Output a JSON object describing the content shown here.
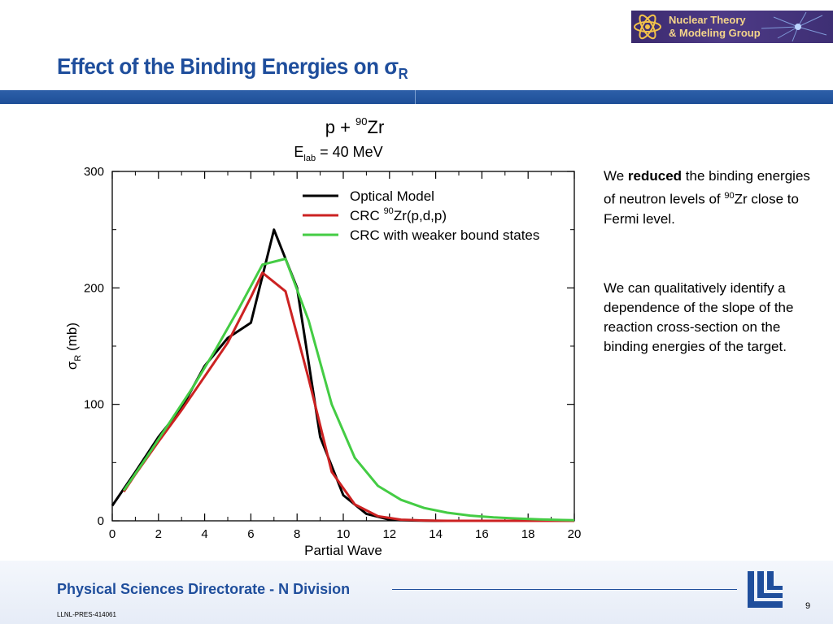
{
  "logo": {
    "line1": "Nuclear Theory",
    "line2": "& Modeling Group"
  },
  "slide": {
    "title_main": "Effect of the Binding Energies on σ",
    "title_sub": "R"
  },
  "notes": {
    "p1_pre": "We ",
    "p1_bold": "reduced",
    "p1_mid": " the binding energies of neutron levels of ",
    "p1_sup": "90",
    "p1_post": "Zr close to Fermi level.",
    "p2": "We can qualitatively identify a dependence of the slope of the reaction cross-section on the binding energies of the target."
  },
  "footer": {
    "title": "Physical Sciences Directorate - N Division",
    "doc_id": "LLNL-PRES-414061",
    "page": "9"
  },
  "chart_data": {
    "type": "line",
    "title_parts": {
      "p": "p + ",
      "mass": "90",
      "elem": "Zr"
    },
    "subtitle_parts": {
      "e": "E",
      "lab": "lab",
      "rest": " = 40 MeV"
    },
    "xlabel": "Partial Wave",
    "ylabel_parts": {
      "sigma": "σ",
      "sub": "R",
      "unit": " (mb)"
    },
    "xlim": [
      0,
      20
    ],
    "ylim": [
      0,
      300
    ],
    "xticks": [
      0,
      2,
      4,
      6,
      8,
      10,
      12,
      14,
      16,
      18,
      20
    ],
    "yticks": [
      0,
      100,
      200,
      300
    ],
    "grid": false,
    "legend_position": "top-right",
    "series": [
      {
        "name": "Optical Model",
        "color": "#000000",
        "x": [
          0,
          1,
          2,
          3,
          4,
          5,
          6,
          7,
          8,
          9,
          10,
          11,
          12,
          13,
          14,
          15,
          16,
          18,
          20
        ],
        "y": [
          13,
          42,
          72,
          97,
          133,
          157,
          170,
          250,
          200,
          72,
          22,
          6,
          1,
          0.3,
          0,
          0,
          0,
          0,
          0
        ]
      },
      {
        "name_parts": {
          "pre": "CRC ",
          "sup": "90",
          "post": "Zr(p,d,p)"
        },
        "color": "#cc2222",
        "x": [
          0.5,
          1,
          2,
          3,
          4,
          5,
          6,
          6.5,
          7.5,
          8.5,
          9.5,
          10.5,
          11.5,
          12.5,
          13.5,
          14.5,
          16,
          18,
          20
        ],
        "y": [
          25,
          40,
          68,
          95,
          124,
          153,
          192,
          213,
          197,
          122,
          42,
          14,
          4,
          1,
          0.3,
          0,
          0,
          0,
          0
        ]
      },
      {
        "name": "CRC with weaker bound states",
        "color": "#44cc44",
        "x": [
          0.5,
          1.5,
          2.5,
          3.5,
          4.5,
          5.5,
          6.5,
          7.5,
          8.5,
          9.5,
          10.5,
          11.5,
          12.5,
          13.5,
          14.5,
          15.5,
          16.5,
          17.5,
          18.5,
          19.5,
          20
        ],
        "y": [
          26,
          55,
          85,
          115,
          148,
          183,
          220,
          225,
          172,
          100,
          54,
          30,
          18,
          11,
          7,
          4.5,
          3,
          2,
          1.2,
          0.7,
          0.5
        ]
      }
    ]
  }
}
